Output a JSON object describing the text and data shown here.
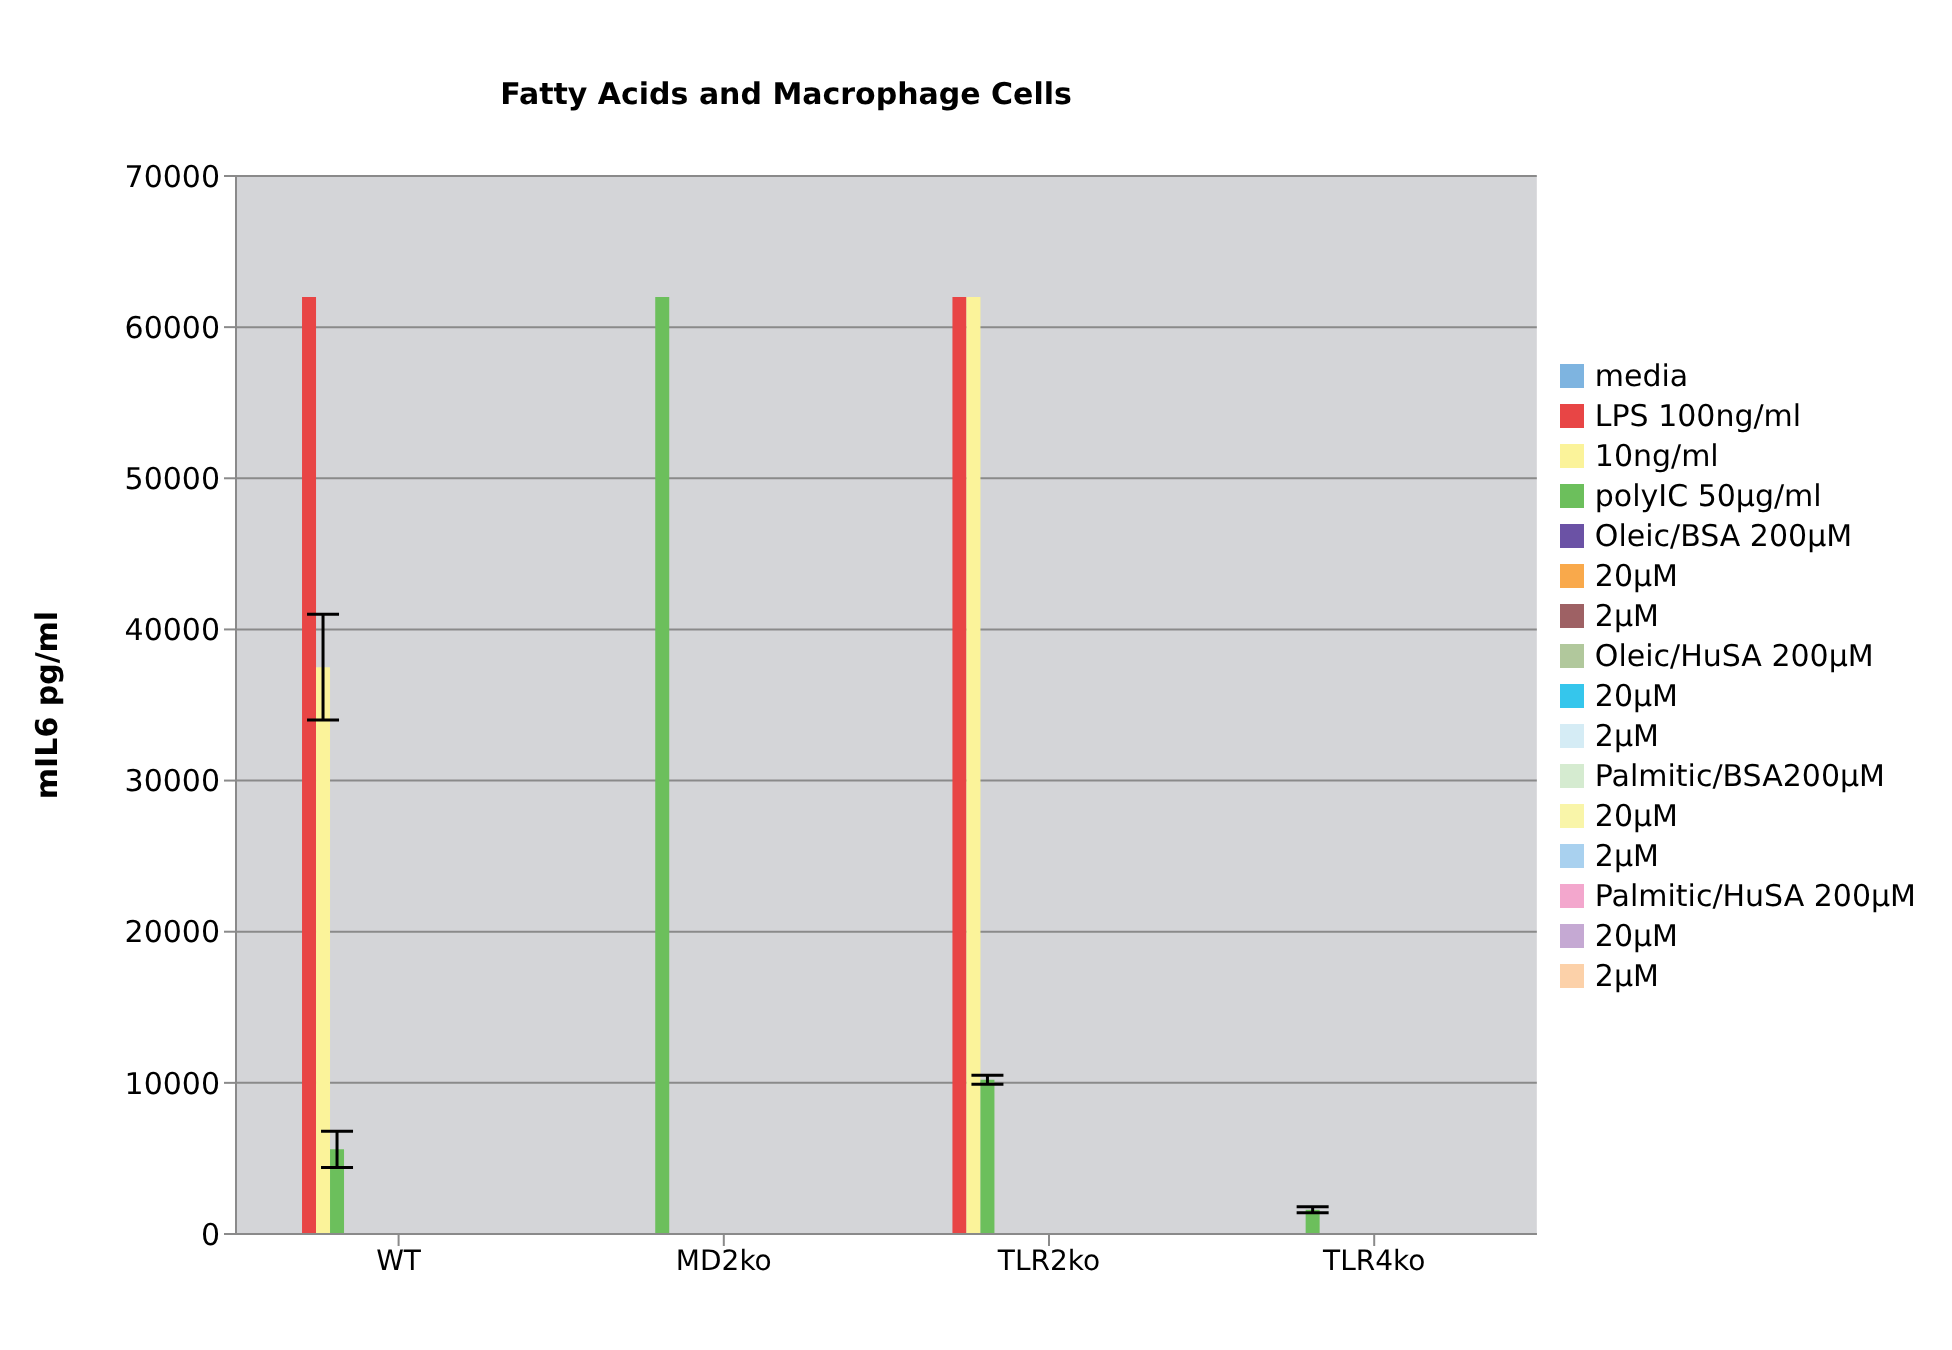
{
  "chart_data": {
    "type": "bar",
    "title": "Fatty Acids and Macrophage Cells",
    "ylabel": "mIL6 pg/ml",
    "categories": [
      "WT",
      "MD2ko",
      "TLR2ko",
      "TLR4ko"
    ],
    "series": [
      {
        "name": "media",
        "color": "#7eb4e0",
        "values": [
          0,
          0,
          0,
          0
        ]
      },
      {
        "name": "LPS 100ng/ml",
        "color": "#e84545",
        "values": [
          62000,
          0,
          62000,
          0
        ],
        "errors": [
          0,
          null,
          0,
          null
        ]
      },
      {
        "name": "10ng/ml",
        "color": "#fbf39a",
        "values": [
          37500,
          0,
          62000,
          0
        ],
        "errors": [
          3500,
          null,
          0,
          null
        ]
      },
      {
        "name": "polyIC 50µg/ml",
        "color": "#6cbf5c",
        "values": [
          5600,
          62000,
          10200,
          1600
        ],
        "errors": [
          1200,
          0,
          300,
          200
        ]
      },
      {
        "name": "Oleic/BSA 200µM",
        "color": "#6b52a5",
        "values": [
          0,
          0,
          0,
          0
        ]
      },
      {
        "name": "20µM",
        "color": "#f9a94b",
        "values": [
          0,
          0,
          0,
          0
        ]
      },
      {
        "name": "2µM",
        "color": "#9e6164",
        "values": [
          0,
          0,
          0,
          0
        ]
      },
      {
        "name": "Oleic/HuSA 200µM",
        "color": "#b1c89c",
        "values": [
          0,
          0,
          0,
          0
        ]
      },
      {
        "name": "20µM",
        "color": "#35c6ec",
        "values": [
          0,
          0,
          0,
          0
        ]
      },
      {
        "name": "2µM",
        "color": "#d5ecf5",
        "values": [
          0,
          0,
          0,
          0
        ]
      },
      {
        "name": "Palmitic/BSA200µM",
        "color": "#d5ebd0",
        "values": [
          0,
          0,
          0,
          0
        ]
      },
      {
        "name": "20µM",
        "color": "#f9f5a9",
        "values": [
          0,
          0,
          0,
          0
        ]
      },
      {
        "name": "2µM",
        "color": "#a9d1ef",
        "values": [
          0,
          0,
          0,
          0
        ]
      },
      {
        "name": "Palmitic/HuSA 200µM",
        "color": "#f3a7cd",
        "values": [
          0,
          0,
          0,
          0
        ]
      },
      {
        "name": "20µM",
        "color": "#c5a9d3",
        "values": [
          0,
          0,
          0,
          0
        ]
      },
      {
        "name": "2µM",
        "color": "#fcd1a9",
        "values": [
          0,
          0,
          0,
          0
        ]
      }
    ],
    "ylim": [
      0,
      70000
    ],
    "yticks": [
      0,
      10000,
      20000,
      30000,
      40000,
      50000,
      60000,
      70000
    ],
    "grid": "y",
    "legend": "right"
  }
}
